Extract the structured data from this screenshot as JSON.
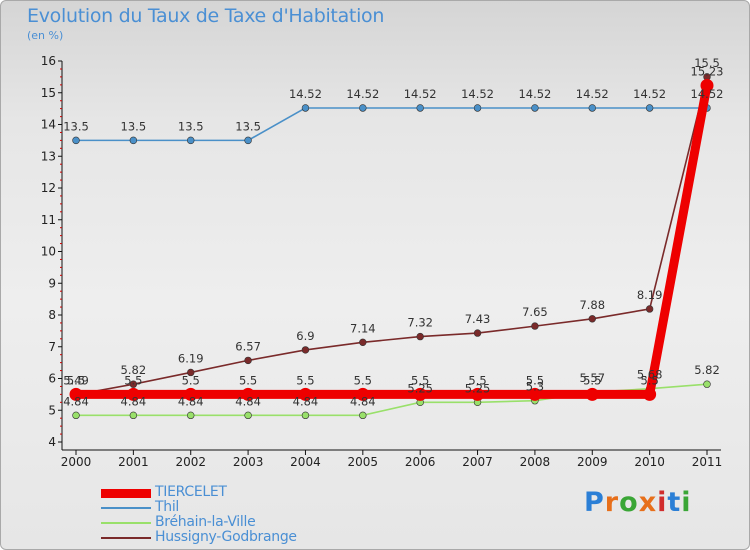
{
  "header": {
    "title": "Evolution du Taux de Taxe d'Habitation",
    "unit": "(en %)"
  },
  "logo": {
    "text": "Proxiti",
    "letter_colors": [
      "#2b7fd6",
      "#e76f1a",
      "#3aa636",
      "#e76f1a",
      "#d12d2d",
      "#2b7fd6",
      "#3aa636"
    ]
  },
  "chart_data": {
    "type": "line",
    "x": [
      "2000",
      "2001",
      "2002",
      "2003",
      "2004",
      "2005",
      "2006",
      "2007",
      "2008",
      "2009",
      "2010",
      "2011"
    ],
    "ylim": [
      4,
      16
    ],
    "yticks": [
      4,
      5,
      6,
      7,
      8,
      9,
      10,
      11,
      12,
      13,
      14,
      15,
      16
    ],
    "grid": false,
    "legend_position": "bottom-left",
    "series": [
      {
        "name": "TIERCELET",
        "color": "#ee0000",
        "values": [
          5.5,
          5.5,
          5.5,
          5.5,
          5.5,
          5.5,
          5.5,
          5.5,
          5.5,
          5.5,
          5.5,
          15.23
        ],
        "labels": [
          "5.5",
          "5.5",
          "5.5",
          "5.5",
          "5.5",
          "5.5",
          "5.5",
          "5.5",
          "5.5",
          "5.5",
          "5.5",
          "15.23"
        ]
      },
      {
        "name": "Thil",
        "color": "#4a90c8",
        "values": [
          13.5,
          13.5,
          13.5,
          13.5,
          14.52,
          14.52,
          14.52,
          14.52,
          14.52,
          14.52,
          14.52,
          14.52
        ],
        "labels": [
          "13.5",
          "13.5",
          "13.5",
          "13.5",
          "14.52",
          "14.52",
          "14.52",
          "14.52",
          "14.52",
          "14.52",
          "14.52",
          "14.52"
        ]
      },
      {
        "name": "Bréhain-la-Ville",
        "color": "#99e06a",
        "values": [
          4.84,
          4.84,
          4.84,
          4.84,
          4.84,
          4.84,
          5.25,
          5.25,
          5.3,
          5.57,
          5.68,
          5.82
        ],
        "labels": [
          "4.84",
          "4.84",
          "4.84",
          "4.84",
          "4.84",
          "4.84",
          "5.25",
          "5.25",
          "5.3",
          "5.57",
          "5.68",
          "5.82"
        ]
      },
      {
        "name": "Hussigny-Godbrange",
        "color": "#7a2a2a",
        "values": [
          5.49,
          5.82,
          6.19,
          6.57,
          6.9,
          7.14,
          7.32,
          7.43,
          7.65,
          7.88,
          8.19,
          15.5
        ],
        "labels": [
          "5.49",
          "5.82",
          "6.19",
          "6.57",
          "6.9",
          "7.14",
          "7.32",
          "7.43",
          "7.65",
          "7.88",
          "8.19",
          "15.5"
        ]
      }
    ]
  }
}
